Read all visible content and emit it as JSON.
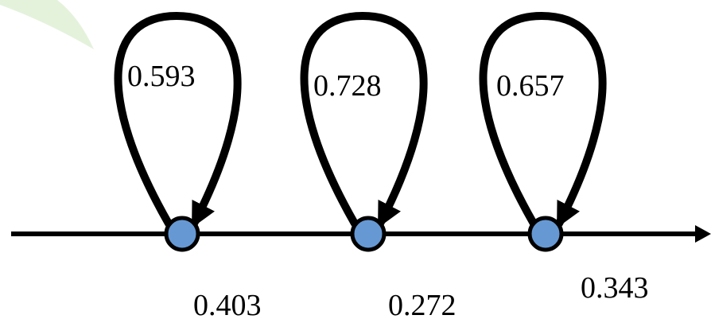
{
  "diagram": {
    "colors": {
      "stroke": "#000000",
      "node_fill": "#6699d4",
      "decor": "#e4f2dc"
    },
    "states": [
      {
        "self_loop_label": "0.593",
        "transition_label": "0.403"
      },
      {
        "self_loop_label": "0.728",
        "transition_label": "0.272"
      },
      {
        "self_loop_label": "0.657",
        "transition_label": "0.343"
      }
    ]
  }
}
